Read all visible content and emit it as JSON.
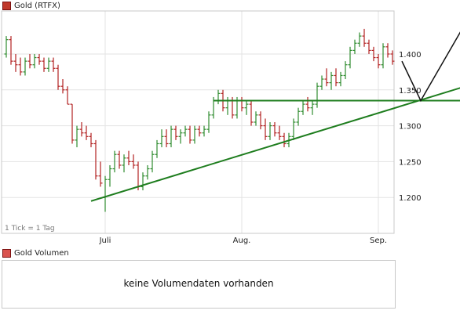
{
  "price_panel": {
    "legend_label": "Gold (RTFX)",
    "legend_color": "#c0392b",
    "tick_note": "1 Tick = 1 Tag"
  },
  "volume_panel": {
    "legend_label": "Gold Volumen",
    "legend_color": "#d9534f",
    "message": "keine Volumendaten vorhanden"
  },
  "chart_data": {
    "type": "ohlc",
    "up_color": "#2e8b2e",
    "down_color": "#b22222",
    "trendline_color": "#1e7d1e",
    "ylim": [
      1.15,
      1.46
    ],
    "y_ticks": [
      1.2,
      1.25,
      1.3,
      1.35,
      1.4
    ],
    "y_tick_labels": [
      "1.200",
      "1.250",
      "1.300",
      "1.350",
      "1.400"
    ],
    "x_ticks": [
      {
        "label": "Juli",
        "bar_index": 21
      },
      {
        "label": "Aug.",
        "bar_index": 50
      },
      {
        "label": "Sep.",
        "bar_index": 79
      }
    ],
    "grid": true,
    "bars": [
      [
        1.4,
        1.425,
        1.395,
        1.42
      ],
      [
        1.42,
        1.425,
        1.385,
        1.39
      ],
      [
        1.39,
        1.4,
        1.375,
        1.385
      ],
      [
        1.385,
        1.395,
        1.37,
        1.375
      ],
      [
        1.375,
        1.395,
        1.37,
        1.39
      ],
      [
        1.39,
        1.4,
        1.38,
        1.385
      ],
      [
        1.385,
        1.4,
        1.38,
        1.395
      ],
      [
        1.395,
        1.4,
        1.385,
        1.39
      ],
      [
        1.39,
        1.395,
        1.375,
        1.38
      ],
      [
        1.38,
        1.395,
        1.375,
        1.39
      ],
      [
        1.39,
        1.395,
        1.375,
        1.38
      ],
      [
        1.38,
        1.385,
        1.35,
        1.355
      ],
      [
        1.355,
        1.365,
        1.345,
        1.35
      ],
      [
        1.35,
        1.355,
        1.33,
        1.33
      ],
      [
        1.33,
        1.33,
        1.275,
        1.28
      ],
      [
        1.28,
        1.3,
        1.27,
        1.295
      ],
      [
        1.295,
        1.305,
        1.285,
        1.29
      ],
      [
        1.29,
        1.3,
        1.28,
        1.285
      ],
      [
        1.285,
        1.29,
        1.27,
        1.275
      ],
      [
        1.275,
        1.28,
        1.225,
        1.23
      ],
      [
        1.23,
        1.25,
        1.215,
        1.22
      ],
      [
        1.2,
        1.23,
        1.18,
        1.225
      ],
      [
        1.225,
        1.245,
        1.215,
        1.24
      ],
      [
        1.24,
        1.265,
        1.235,
        1.26
      ],
      [
        1.26,
        1.265,
        1.24,
        1.245
      ],
      [
        1.245,
        1.26,
        1.235,
        1.255
      ],
      [
        1.255,
        1.265,
        1.245,
        1.25
      ],
      [
        1.25,
        1.26,
        1.24,
        1.245
      ],
      [
        1.245,
        1.25,
        1.21,
        1.215
      ],
      [
        1.215,
        1.235,
        1.21,
        1.23
      ],
      [
        1.23,
        1.245,
        1.225,
        1.24
      ],
      [
        1.24,
        1.265,
        1.235,
        1.26
      ],
      [
        1.26,
        1.28,
        1.255,
        1.275
      ],
      [
        1.275,
        1.295,
        1.27,
        1.285
      ],
      [
        1.285,
        1.295,
        1.27,
        1.275
      ],
      [
        1.275,
        1.3,
        1.27,
        1.295
      ],
      [
        1.295,
        1.3,
        1.28,
        1.285
      ],
      [
        1.285,
        1.295,
        1.275,
        1.29
      ],
      [
        1.29,
        1.3,
        1.285,
        1.295
      ],
      [
        1.295,
        1.3,
        1.275,
        1.28
      ],
      [
        1.28,
        1.3,
        1.275,
        1.295
      ],
      [
        1.295,
        1.3,
        1.285,
        1.29
      ],
      [
        1.29,
        1.3,
        1.285,
        1.295
      ],
      [
        1.295,
        1.32,
        1.29,
        1.315
      ],
      [
        1.315,
        1.34,
        1.31,
        1.335
      ],
      [
        1.335,
        1.35,
        1.33,
        1.345
      ],
      [
        1.345,
        1.35,
        1.32,
        1.325
      ],
      [
        1.325,
        1.34,
        1.315,
        1.335
      ],
      [
        1.335,
        1.34,
        1.31,
        1.315
      ],
      [
        1.315,
        1.34,
        1.31,
        1.335
      ],
      [
        1.335,
        1.34,
        1.32,
        1.325
      ],
      [
        1.325,
        1.335,
        1.315,
        1.33
      ],
      [
        1.33,
        1.335,
        1.3,
        1.305
      ],
      [
        1.305,
        1.32,
        1.3,
        1.315
      ],
      [
        1.315,
        1.32,
        1.295,
        1.3
      ],
      [
        1.3,
        1.31,
        1.28,
        1.285
      ],
      [
        1.285,
        1.305,
        1.28,
        1.3
      ],
      [
        1.3,
        1.305,
        1.285,
        1.29
      ],
      [
        1.29,
        1.3,
        1.28,
        1.285
      ],
      [
        1.285,
        1.29,
        1.27,
        1.275
      ],
      [
        1.275,
        1.29,
        1.27,
        1.285
      ],
      [
        1.285,
        1.31,
        1.28,
        1.305
      ],
      [
        1.305,
        1.325,
        1.3,
        1.32
      ],
      [
        1.32,
        1.335,
        1.315,
        1.33
      ],
      [
        1.33,
        1.34,
        1.32,
        1.325
      ],
      [
        1.325,
        1.335,
        1.315,
        1.33
      ],
      [
        1.33,
        1.36,
        1.325,
        1.355
      ],
      [
        1.355,
        1.37,
        1.35,
        1.365
      ],
      [
        1.365,
        1.38,
        1.355,
        1.36
      ],
      [
        1.36,
        1.375,
        1.35,
        1.37
      ],
      [
        1.37,
        1.38,
        1.355,
        1.36
      ],
      [
        1.36,
        1.375,
        1.355,
        1.37
      ],
      [
        1.37,
        1.39,
        1.365,
        1.385
      ],
      [
        1.385,
        1.41,
        1.38,
        1.405
      ],
      [
        1.405,
        1.42,
        1.4,
        1.415
      ],
      [
        1.415,
        1.43,
        1.41,
        1.425
      ],
      [
        1.425,
        1.435,
        1.41,
        1.415
      ],
      [
        1.415,
        1.42,
        1.4,
        1.405
      ],
      [
        1.405,
        1.41,
        1.39,
        1.395
      ],
      [
        1.395,
        1.4,
        1.38,
        1.385
      ],
      [
        1.385,
        1.415,
        1.38,
        1.41
      ],
      [
        1.41,
        1.415,
        1.395,
        1.4
      ],
      [
        1.4,
        1.405,
        1.385,
        1.39
      ]
    ],
    "trendlines": [
      {
        "from": {
          "bar": 18,
          "y": 1.195
        },
        "to": {
          "bar": 100,
          "y": 1.36
        }
      },
      {
        "from": {
          "bar": 44,
          "y": 1.335
        },
        "to": {
          "bar": 100,
          "y": 1.335
        }
      }
    ],
    "projection": [
      {
        "bar": 84,
        "y": 1.39
      },
      {
        "bar": 88,
        "y": 1.335
      },
      {
        "bar": 99,
        "y": 1.46
      }
    ]
  }
}
